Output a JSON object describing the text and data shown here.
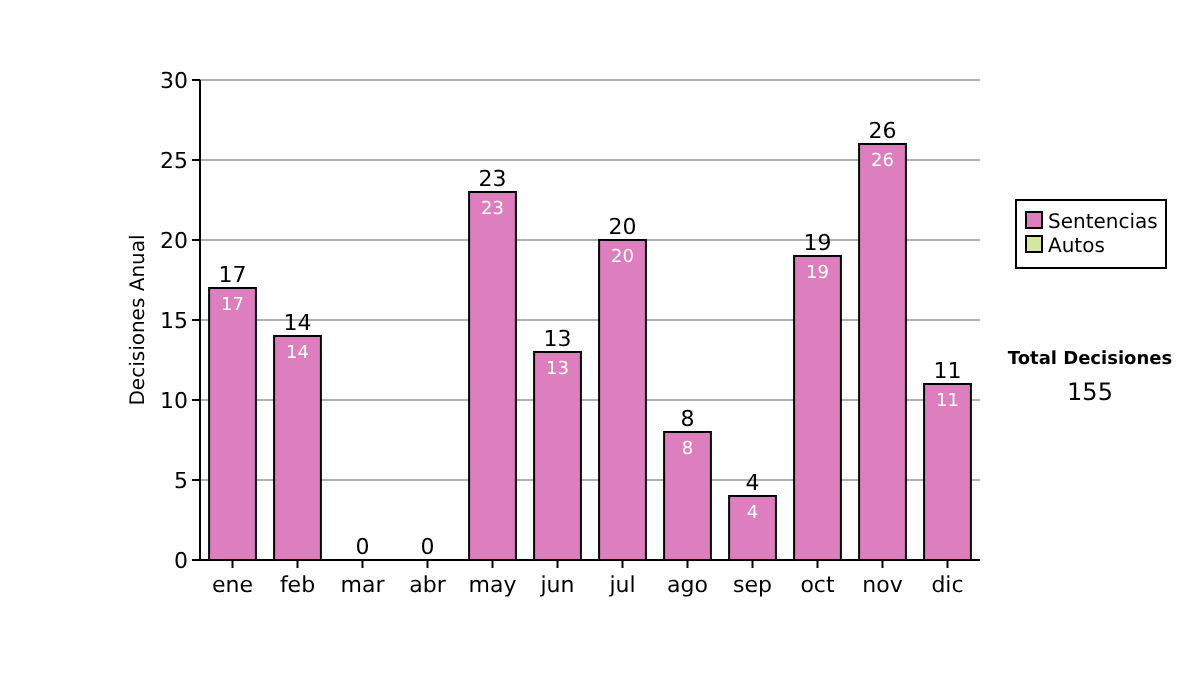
{
  "chart_data": {
    "type": "bar",
    "stacked": true,
    "ylabel": "Decisiones Anual",
    "categories": [
      "ene",
      "feb",
      "mar",
      "abr",
      "may",
      "jun",
      "jul",
      "ago",
      "sep",
      "oct",
      "nov",
      "dic"
    ],
    "series": [
      {
        "name": "Sentencias",
        "color": "#dd7fbf",
        "values": [
          17,
          14,
          0,
          0,
          23,
          13,
          20,
          8,
          4,
          19,
          26,
          11
        ],
        "value_labels": [
          "17",
          "14",
          null,
          null,
          "23",
          "13",
          "20",
          "8",
          "4",
          "19",
          "26",
          "11"
        ]
      },
      {
        "name": "Autos",
        "color": "#d4e8a0",
        "values": [
          0,
          0,
          0,
          0,
          0,
          0,
          0,
          0,
          0,
          0,
          0,
          0
        ]
      }
    ],
    "totals": [
      "17",
      "14",
      "0",
      "0",
      "23",
      "13",
      "20",
      "8",
      "4",
      "19",
      "26",
      "11"
    ],
    "ylim": [
      0,
      30
    ],
    "yticks": [
      0,
      5,
      10,
      15,
      20,
      25,
      30
    ],
    "grid": "y",
    "legend": "right",
    "annotations": [
      "Total Decisiones",
      "155"
    ]
  }
}
